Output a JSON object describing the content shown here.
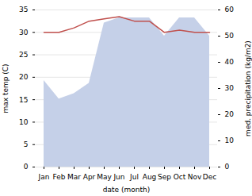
{
  "chart_data": {
    "type": "line",
    "xlabel": "date (month)",
    "ylabel": "max temp (C)",
    "y2label": "med. precipitation (kg/m2)",
    "categories": [
      "Jan",
      "Feb",
      "Mar",
      "Apr",
      "May",
      "Jun",
      "Jul",
      "Aug",
      "Sep",
      "Oct",
      "Nov",
      "Dec"
    ],
    "series": [
      {
        "type": "area",
        "axis": "y2",
        "color": "#c5d0e8",
        "values": [
          33,
          26,
          28,
          32,
          55,
          57,
          57,
          57,
          50,
          57,
          57,
          50
        ]
      },
      {
        "type": "line",
        "color": "#c0504d",
        "values": [
          30.0,
          30.0,
          31.0,
          32.5,
          33.0,
          33.5,
          32.5,
          32.5,
          30.0,
          30.5,
          30.0,
          30.0
        ]
      }
    ],
    "ylim": [
      0,
      35
    ],
    "yticks": [
      0,
      5,
      10,
      15,
      20,
      25,
      30,
      35
    ],
    "y2lim": [
      0,
      60
    ],
    "y2ticks": [
      0,
      10,
      20,
      30,
      40,
      50,
      60
    ],
    "grid": true
  }
}
